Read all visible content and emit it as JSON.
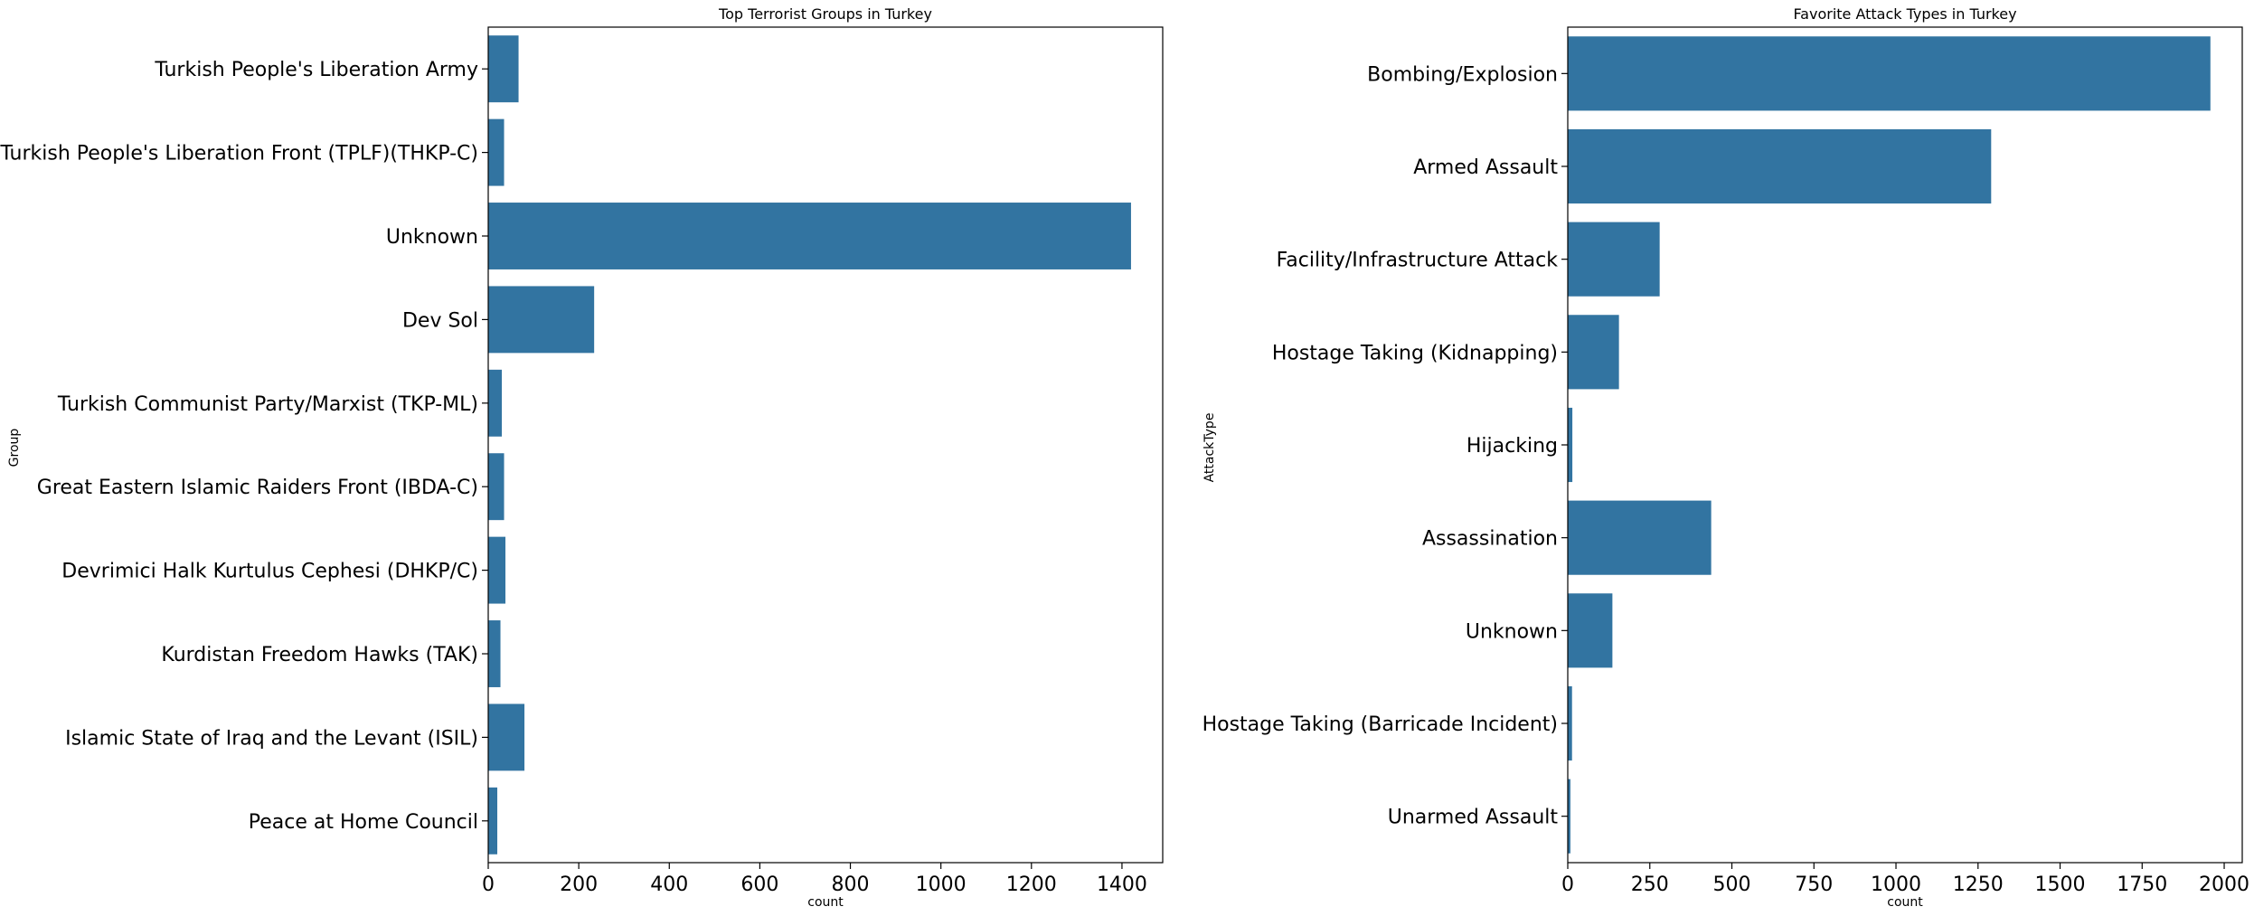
{
  "chart_data": [
    {
      "type": "bar",
      "orientation": "horizontal",
      "title": "Top Terrorist Groups in Turkey",
      "xlabel": "count",
      "ylabel": "Group",
      "categories": [
        "Turkish People's Liberation Army",
        "Turkish People's Liberation Front (TPLF)(THKP-C)",
        "Unknown",
        "Dev Sol",
        "Turkish Communist Party/Marxist (TKP-ML)",
        "Great Eastern Islamic Raiders Front (IBDA-C)",
        "Devrimici Halk Kurtulus Cephesi (DHKP/C)",
        "Kurdistan Freedom Hawks (TAK)",
        "Islamic State of Iraq and the Levant (ISIL)",
        "Peace at Home Council"
      ],
      "values": [
        67,
        35,
        1420,
        234,
        30,
        35,
        38,
        27,
        80,
        20
      ],
      "xlim": [
        0,
        1490
      ],
      "xticks": [
        0,
        200,
        400,
        600,
        800,
        1000,
        1200,
        1400
      ],
      "grid": false,
      "bar_color": "#3274a1"
    },
    {
      "type": "bar",
      "orientation": "horizontal",
      "title": "Favorite Attack Types in Turkey",
      "xlabel": "count",
      "ylabel": "AttackType",
      "categories": [
        "Bombing/Explosion",
        "Armed Assault",
        "Facility/Infrastructure Attack",
        "Hostage Taking (Kidnapping)",
        "Hijacking",
        "Assassination",
        "Unknown",
        "Hostage Taking (Barricade Incident)",
        "Unarmed Assault"
      ],
      "values": [
        1958,
        1290,
        280,
        156,
        14,
        437,
        136,
        13,
        8
      ],
      "xlim": [
        0,
        2055
      ],
      "xticks": [
        0,
        250,
        500,
        750,
        1000,
        1250,
        1500,
        1750,
        2000
      ],
      "grid": false,
      "bar_color": "#3274a1"
    }
  ]
}
